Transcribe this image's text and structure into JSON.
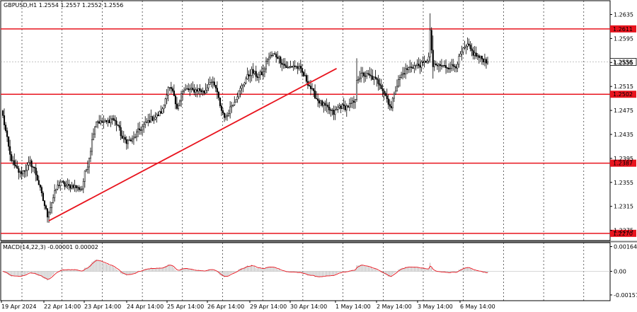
{
  "chart_data": [
    {
      "type": "candlestick",
      "symbol_header": "GBPUSD,H1  1.2554 1.2557 1.2552 1.2556",
      "y_ticks": [
        "1.2635",
        "1.2595",
        "1.2555",
        "1.2515",
        "1.2475",
        "1.2435",
        "1.2395",
        "1.2355",
        "1.2315",
        "1.2275"
      ],
      "ylim": [
        1.2258,
        1.2658
      ],
      "x_tick_labels": [
        "19 Apr 2024",
        "22 Apr 14:00",
        "23 Apr 14:00",
        "24 Apr 14:00",
        "25 Apr 14:00",
        "26 Apr 14:00",
        "29 Apr 14:00",
        "30 Apr 14:00",
        "1 May 14:00",
        "2 May 14:00",
        "3 May 14:00",
        "6 May 14:00"
      ],
      "bar_count": 338,
      "last_price": "1.2556",
      "horizontal_levels": [
        {
          "label": "1.2611",
          "value": 1.2611,
          "color": "#e8141e"
        },
        {
          "label": "1.2502",
          "value": 1.2502,
          "color": "#e8141e"
        },
        {
          "label": "1.2387",
          "value": 1.2387,
          "color": "#e8141e"
        },
        {
          "label": "1.2270",
          "value": 1.227,
          "color": "#e8141e"
        }
      ],
      "trendline": {
        "from": {
          "bar": 32,
          "price": 1.2291
        },
        "to": {
          "bar": 232,
          "price": 1.2545
        },
        "color": "#e8141e"
      },
      "close_anchors": [
        [
          0,
          1.2465
        ],
        [
          2,
          1.244
        ],
        [
          5,
          1.24
        ],
        [
          8,
          1.2382
        ],
        [
          12,
          1.237
        ],
        [
          16,
          1.2378
        ],
        [
          19,
          1.2388
        ],
        [
          22,
          1.2377
        ],
        [
          25,
          1.2352
        ],
        [
          28,
          1.2325
        ],
        [
          31,
          1.23
        ],
        [
          34,
          1.2322
        ],
        [
          37,
          1.2344
        ],
        [
          40,
          1.2356
        ],
        [
          43,
          1.235
        ],
        [
          46,
          1.2348
        ],
        [
          49,
          1.235
        ],
        [
          52,
          1.2345
        ],
        [
          55,
          1.2345
        ],
        [
          57,
          1.237
        ],
        [
          59,
          1.2385
        ],
        [
          61,
          1.241
        ],
        [
          63,
          1.244
        ],
        [
          65,
          1.2458
        ],
        [
          68,
          1.2455
        ],
        [
          72,
          1.2455
        ],
        [
          76,
          1.2462
        ],
        [
          80,
          1.245
        ],
        [
          83,
          1.2428
        ],
        [
          86,
          1.2424
        ],
        [
          90,
          1.2425
        ],
        [
          94,
          1.244
        ],
        [
          98,
          1.245
        ],
        [
          103,
          1.2461
        ],
        [
          107,
          1.2465
        ],
        [
          111,
          1.2475
        ],
        [
          115,
          1.2515
        ],
        [
          118,
          1.2505
        ],
        [
          121,
          1.2475
        ],
        [
          124,
          1.2505
        ],
        [
          128,
          1.251
        ],
        [
          132,
          1.2508
        ],
        [
          136,
          1.251
        ],
        [
          140,
          1.2505
        ],
        [
          144,
          1.2525
        ],
        [
          148,
          1.2512
        ],
        [
          152,
          1.2475
        ],
        [
          155,
          1.2462
        ],
        [
          158,
          1.248
        ],
        [
          161,
          1.2492
        ],
        [
          165,
          1.251
        ],
        [
          169,
          1.2528
        ],
        [
          173,
          1.254
        ],
        [
          177,
          1.2532
        ],
        [
          181,
          1.2538
        ],
        [
          184,
          1.2562
        ],
        [
          188,
          1.2568
        ],
        [
          191,
          1.2565
        ],
        [
          194,
          1.2555
        ],
        [
          198,
          1.2545
        ],
        [
          202,
          1.255
        ],
        [
          206,
          1.2545
        ],
        [
          210,
          1.253
        ],
        [
          214,
          1.2512
        ],
        [
          218,
          1.2495
        ],
        [
          222,
          1.2485
        ],
        [
          226,
          1.2478
        ],
        [
          230,
          1.247
        ],
        [
          234,
          1.2482
        ],
        [
          238,
          1.248
        ],
        [
          242,
          1.2485
        ],
        [
          245,
          1.249
        ],
        [
          246,
          1.2528
        ],
        [
          250,
          1.2535
        ],
        [
          254,
          1.2533
        ],
        [
          258,
          1.2528
        ],
        [
          262,
          1.252
        ],
        [
          266,
          1.25
        ],
        [
          270,
          1.2478
        ],
        [
          272,
          1.2505
        ],
        [
          276,
          1.253
        ],
        [
          280,
          1.2542
        ],
        [
          284,
          1.2548
        ],
        [
          288,
          1.255
        ],
        [
          292,
          1.2552
        ],
        [
          296,
          1.2563
        ],
        [
          297,
          1.2605
        ],
        [
          299,
          1.2548
        ],
        [
          303,
          1.255
        ],
        [
          307,
          1.2548
        ],
        [
          311,
          1.2548
        ],
        [
          315,
          1.255
        ],
        [
          319,
          1.2572
        ],
        [
          323,
          1.2583
        ],
        [
          327,
          1.257
        ],
        [
          331,
          1.2563
        ],
        [
          334,
          1.256
        ],
        [
          337,
          1.2556
        ]
      ],
      "macd": {
        "label": "MACD(14,22,3) -0.00001 0.00002",
        "y_ticks": [
          "0.00164",
          "0.00",
          "-0.00157"
        ],
        "ylim": [
          -0.00195,
          0.0019
        ]
      }
    }
  ]
}
